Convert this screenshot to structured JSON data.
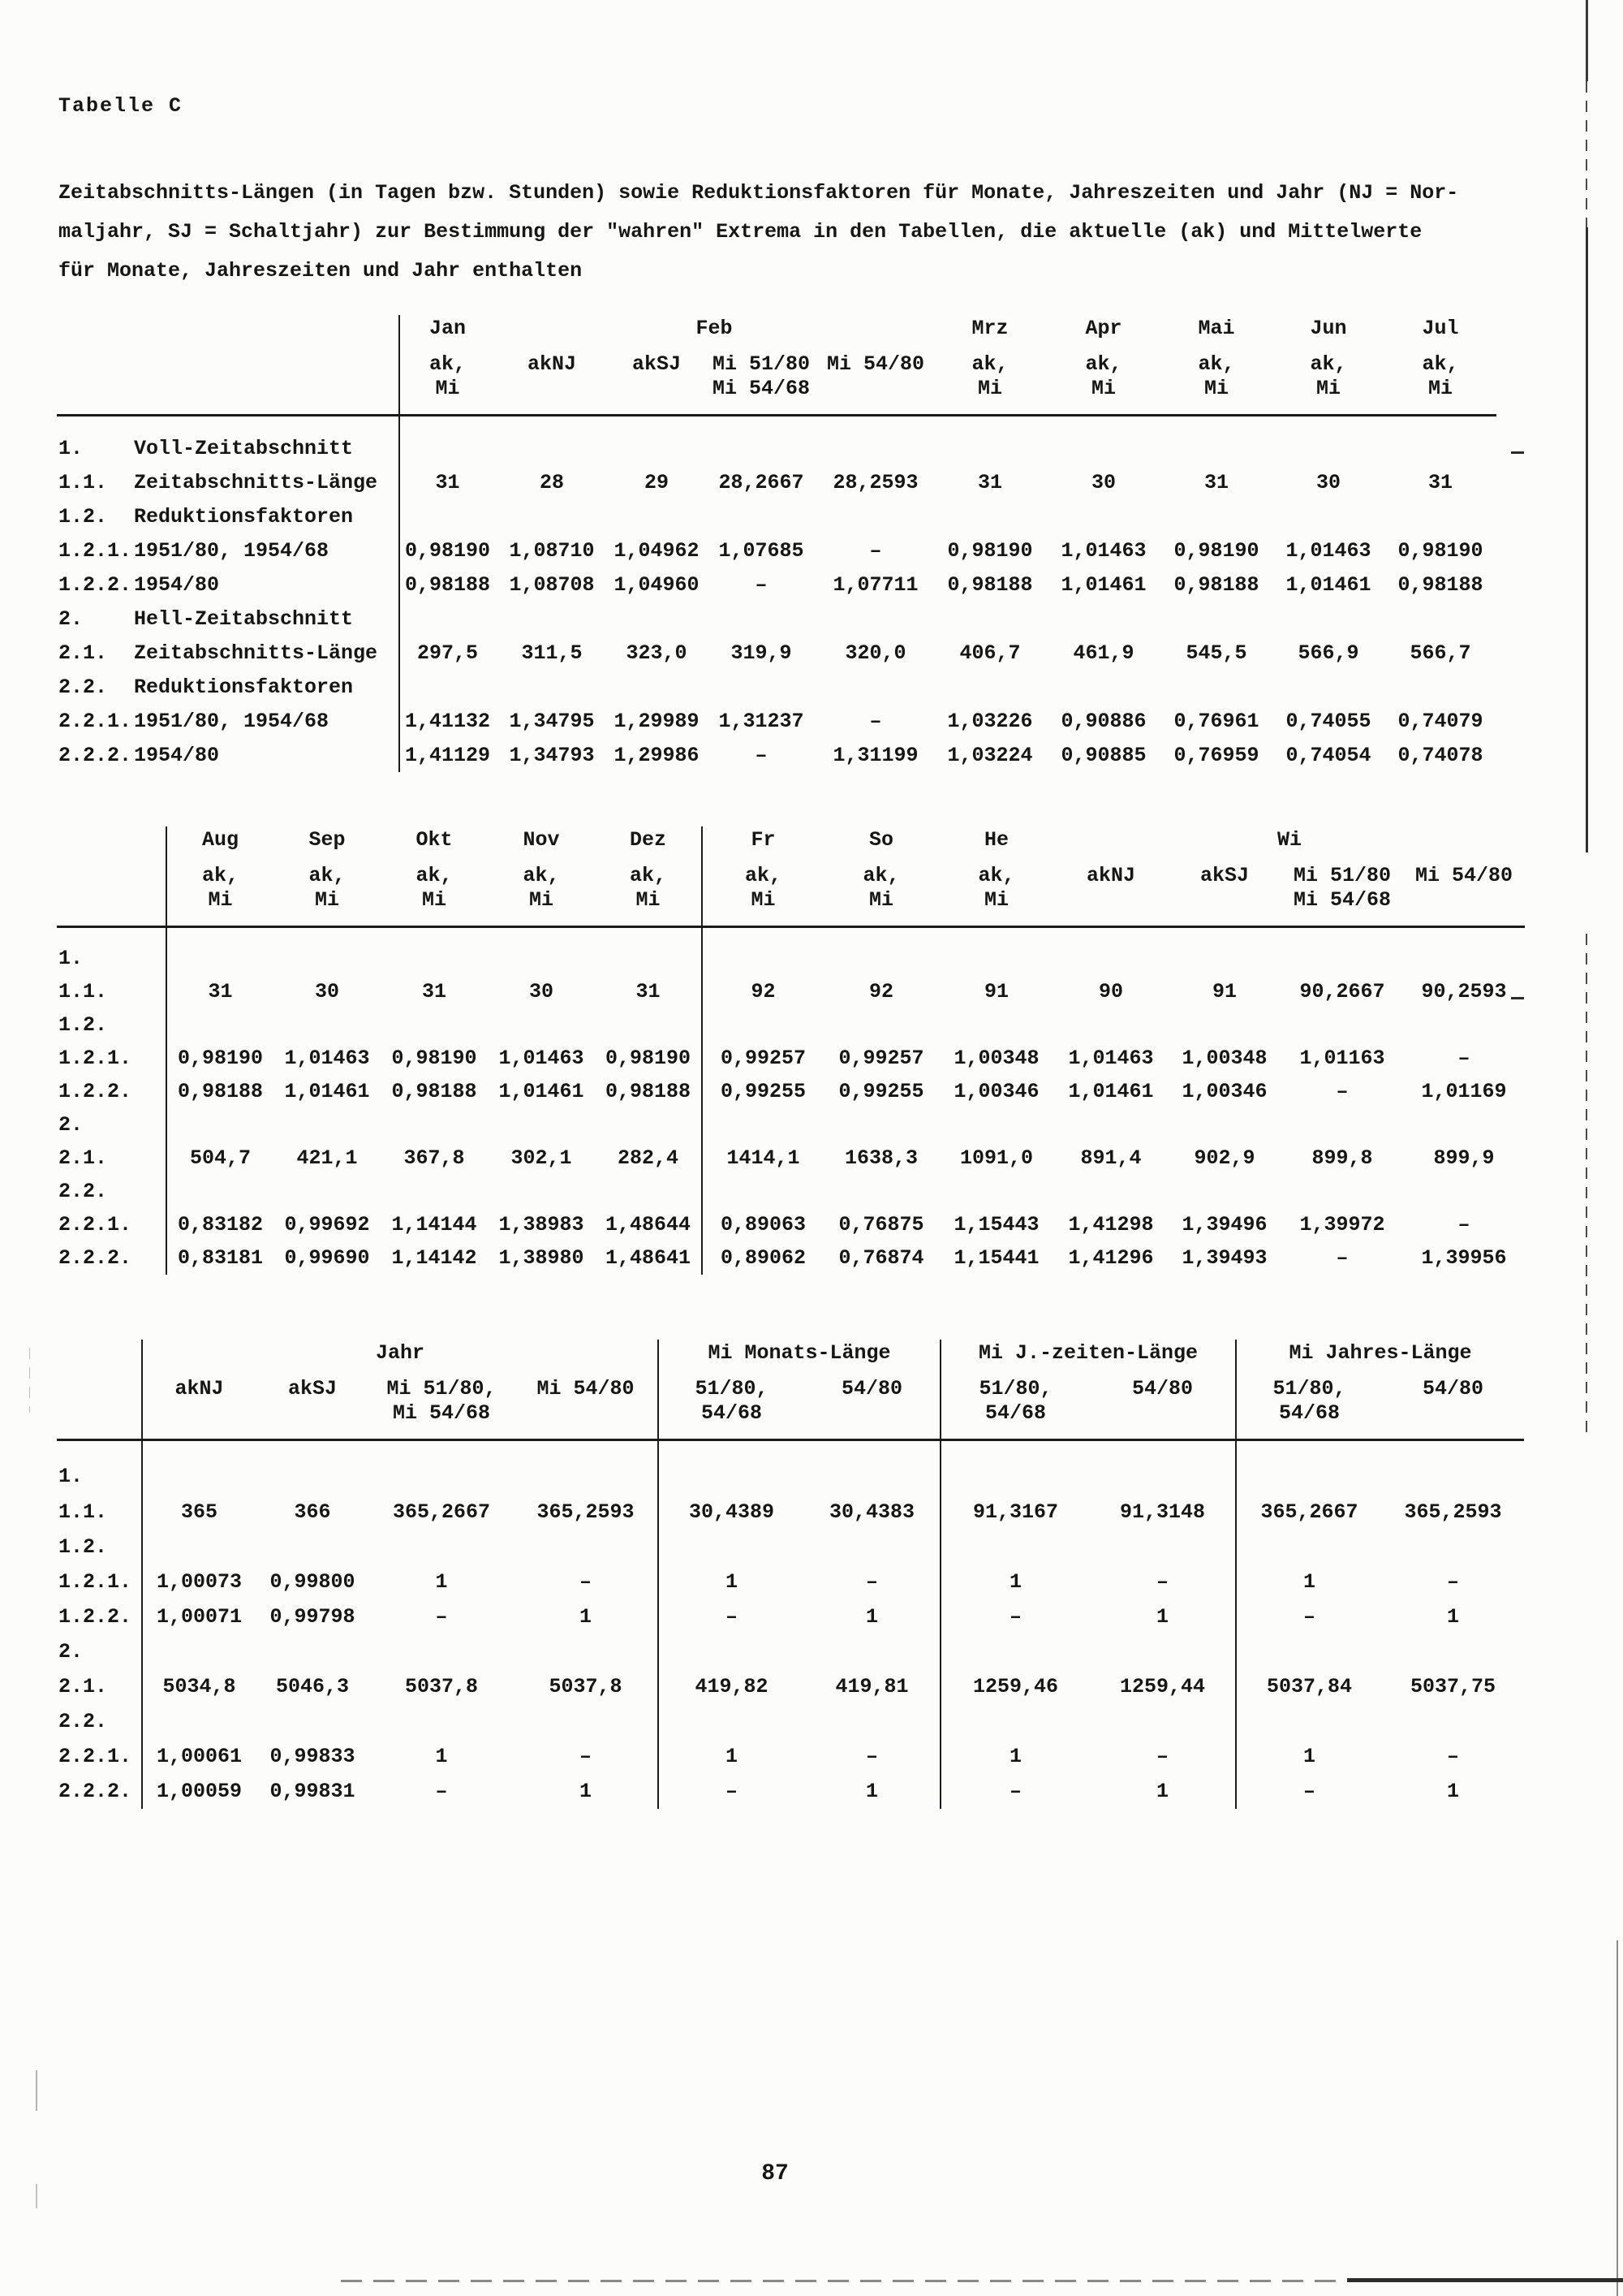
{
  "page": {
    "title": "Tabelle C",
    "description_lines": [
      "Zeitabschnitts-Längen (in Tagen bzw. Stunden) sowie Reduktionsfaktoren für Monate, Jahreszeiten und Jahr (NJ = Nor-",
      "maljahr, SJ = Schaltjahr) zur Bestimmung der \"wahren\" Extrema in den Tabellen, die aktuelle (ak) und Mittelwerte",
      "für Monate, Jahreszeiten und Jahr enthalten"
    ],
    "page_number": "87"
  },
  "table1": {
    "head": [
      [
        {
          "t": "",
          "span": 2
        },
        {
          "t": "Jan"
        },
        {
          "t": "Feb",
          "span": 4
        },
        {
          "t": "Mrz"
        },
        {
          "t": "Apr"
        },
        {
          "t": "Mai"
        },
        {
          "t": "Jun"
        },
        {
          "t": "Jul"
        }
      ],
      [
        {
          "t": "",
          "span": 2
        },
        {
          "t": "ak,\nMi"
        },
        {
          "t": "akNJ"
        },
        {
          "t": "akSJ"
        },
        {
          "t": "Mi 51/80\nMi 54/68"
        },
        {
          "t": "Mi 54/80"
        },
        {
          "t": "ak,\nMi"
        },
        {
          "t": "ak,\nMi"
        },
        {
          "t": "ak,\nMi"
        },
        {
          "t": "ak,\nMi"
        },
        {
          "t": "ak,\nMi"
        }
      ]
    ],
    "rows": [
      {
        "num": "1.",
        "label": "Voll-Zeitabschnitt",
        "values": []
      },
      {
        "num": "1.1.",
        "label": "Zeitabschnitts-Länge",
        "values": [
          "31",
          "28",
          "29",
          "28,2667",
          "28,2593",
          "31",
          "30",
          "31",
          "30",
          "31"
        ]
      },
      {
        "num": "1.2.",
        "label": "Reduktionsfaktoren",
        "values": []
      },
      {
        "num": "1.2.1.",
        "label": "1951/80, 1954/68",
        "values": [
          "0,98190",
          "1,08710",
          "1,04962",
          "1,07685",
          "–",
          "0,98190",
          "1,01463",
          "0,98190",
          "1,01463",
          "0,98190"
        ]
      },
      {
        "num": "1.2.2.",
        "label": "1954/80",
        "values": [
          "0,98188",
          "1,08708",
          "1,04960",
          "–",
          "1,07711",
          "0,98188",
          "1,01461",
          "0,98188",
          "1,01461",
          "0,98188"
        ]
      },
      {
        "num": "2.",
        "label": "Hell-Zeitabschnitt",
        "values": []
      },
      {
        "num": "2.1.",
        "label": "Zeitabschnitts-Länge",
        "values": [
          "297,5",
          "311,5",
          "323,0",
          "319,9",
          "320,0",
          "406,7",
          "461,9",
          "545,5",
          "566,9",
          "566,7"
        ]
      },
      {
        "num": "2.2.",
        "label": "Reduktionsfaktoren",
        "values": []
      },
      {
        "num": "2.2.1.",
        "label": "1951/80, 1954/68",
        "values": [
          "1,41132",
          "1,34795",
          "1,29989",
          "1,31237",
          "–",
          "1,03226",
          "0,90886",
          "0,76961",
          "0,74055",
          "0,74079"
        ]
      },
      {
        "num": "2.2.2.",
        "label": "1954/80",
        "values": [
          "1,41129",
          "1,34793",
          "1,29986",
          "–",
          "1,31199",
          "1,03224",
          "0,90885",
          "0,76959",
          "0,74054",
          "0,74078"
        ]
      }
    ]
  },
  "table2": {
    "head": [
      [
        {
          "t": ""
        },
        {
          "t": "Aug"
        },
        {
          "t": "Sep"
        },
        {
          "t": "Okt"
        },
        {
          "t": "Nov"
        },
        {
          "t": "Dez"
        },
        {
          "t": "Fr"
        },
        {
          "t": "So"
        },
        {
          "t": "He"
        },
        {
          "t": "Wi",
          "span": 4
        }
      ],
      [
        {
          "t": ""
        },
        {
          "t": "ak,\nMi"
        },
        {
          "t": "ak,\nMi"
        },
        {
          "t": "ak,\nMi"
        },
        {
          "t": "ak,\nMi"
        },
        {
          "t": "ak,\nMi"
        },
        {
          "t": "ak,\nMi"
        },
        {
          "t": "ak,\nMi"
        },
        {
          "t": "ak,\nMi"
        },
        {
          "t": "akNJ"
        },
        {
          "t": "akSJ"
        },
        {
          "t": "Mi 51/80\nMi 54/68"
        },
        {
          "t": "Mi 54/80"
        }
      ]
    ],
    "rows": [
      {
        "num": "1.",
        "values": []
      },
      {
        "num": "1.1.",
        "values": [
          "31",
          "30",
          "31",
          "30",
          "31",
          "92",
          "92",
          "91",
          "90",
          "91",
          "90,2667",
          "90,2593"
        ]
      },
      {
        "num": "1.2.",
        "values": []
      },
      {
        "num": "1.2.1.",
        "values": [
          "0,98190",
          "1,01463",
          "0,98190",
          "1,01463",
          "0,98190",
          "0,99257",
          "0,99257",
          "1,00348",
          "1,01463",
          "1,00348",
          "1,01163",
          "–"
        ]
      },
      {
        "num": "1.2.2.",
        "values": [
          "0,98188",
          "1,01461",
          "0,98188",
          "1,01461",
          "0,98188",
          "0,99255",
          "0,99255",
          "1,00346",
          "1,01461",
          "1,00346",
          "–",
          "1,01169"
        ]
      },
      {
        "num": "2.",
        "values": []
      },
      {
        "num": "2.1.",
        "values": [
          "504,7",
          "421,1",
          "367,8",
          "302,1",
          "282,4",
          "1414,1",
          "1638,3",
          "1091,0",
          "891,4",
          "902,9",
          "899,8",
          "899,9"
        ]
      },
      {
        "num": "2.2.",
        "values": []
      },
      {
        "num": "2.2.1.",
        "values": [
          "0,83182",
          "0,99692",
          "1,14144",
          "1,38983",
          "1,48644",
          "0,89063",
          "0,76875",
          "1,15443",
          "1,41298",
          "1,39496",
          "1,39972",
          "–"
        ]
      },
      {
        "num": "2.2.2.",
        "values": [
          "0,83181",
          "0,99690",
          "1,14142",
          "1,38980",
          "1,48641",
          "0,89062",
          "0,76874",
          "1,15441",
          "1,41296",
          "1,39493",
          "–",
          "1,39956"
        ]
      }
    ]
  },
  "table3": {
    "head": [
      [
        {
          "t": ""
        },
        {
          "t": "Jahr",
          "span": 4
        },
        {
          "t": "Mi Monats-Länge",
          "span": 2
        },
        {
          "t": "Mi J.-zeiten-Länge",
          "span": 2
        },
        {
          "t": "Mi Jahres-Länge",
          "span": 2
        }
      ],
      [
        {
          "t": ""
        },
        {
          "t": "akNJ"
        },
        {
          "t": "akSJ"
        },
        {
          "t": "Mi 51/80,\nMi 54/68"
        },
        {
          "t": "Mi 54/80"
        },
        {
          "t": "51/80,\n54/68"
        },
        {
          "t": "54/80"
        },
        {
          "t": "51/80,\n54/68"
        },
        {
          "t": "54/80"
        },
        {
          "t": "51/80,\n54/68"
        },
        {
          "t": "54/80"
        }
      ]
    ],
    "rows": [
      {
        "num": "1.",
        "values": []
      },
      {
        "num": "1.1.",
        "values": [
          "365",
          "366",
          "365,2667",
          "365,2593",
          "30,4389",
          "30,4383",
          "91,3167",
          "91,3148",
          "365,2667",
          "365,2593"
        ]
      },
      {
        "num": "1.2.",
        "values": []
      },
      {
        "num": "1.2.1.",
        "values": [
          "1,00073",
          "0,99800",
          "1",
          "–",
          "1",
          "–",
          "1",
          "–",
          "1",
          "–"
        ]
      },
      {
        "num": "1.2.2.",
        "values": [
          "1,00071",
          "0,99798",
          "–",
          "1",
          "–",
          "1",
          "–",
          "1",
          "–",
          "1"
        ]
      },
      {
        "num": "2.",
        "values": []
      },
      {
        "num": "2.1.",
        "values": [
          "5034,8",
          "5046,3",
          "5037,8",
          "5037,8",
          "419,82",
          "419,81",
          "1259,46",
          "1259,44",
          "5037,84",
          "5037,75"
        ]
      },
      {
        "num": "2.2.",
        "values": []
      },
      {
        "num": "2.2.1.",
        "values": [
          "1,00061",
          "0,99833",
          "1",
          "–",
          "1",
          "–",
          "1",
          "–",
          "1",
          "–"
        ]
      },
      {
        "num": "2.2.2.",
        "values": [
          "1,00059",
          "0,99831",
          "–",
          "1",
          "–",
          "1",
          "–",
          "1",
          "–",
          "1"
        ]
      }
    ]
  }
}
